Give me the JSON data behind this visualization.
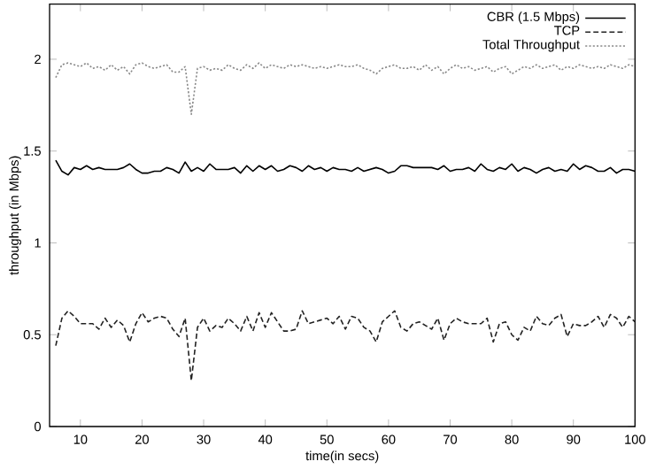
{
  "chart_data": {
    "type": "line",
    "xlabel": "time(in secs)",
    "ylabel": "throughput (in Mbps)",
    "x": [
      6,
      7,
      8,
      9,
      10,
      11,
      12,
      13,
      14,
      15,
      16,
      17,
      18,
      19,
      20,
      21,
      22,
      23,
      24,
      25,
      26,
      27,
      28,
      29,
      30,
      31,
      32,
      33,
      34,
      35,
      36,
      37,
      38,
      39,
      40,
      41,
      42,
      43,
      44,
      45,
      46,
      47,
      48,
      49,
      50,
      51,
      52,
      53,
      54,
      55,
      56,
      57,
      58,
      59,
      60,
      61,
      62,
      63,
      64,
      65,
      66,
      67,
      68,
      69,
      70,
      71,
      72,
      73,
      74,
      75,
      76,
      77,
      78,
      79,
      80,
      81,
      82,
      83,
      84,
      85,
      86,
      87,
      88,
      89,
      90,
      91,
      92,
      93,
      94,
      95,
      96,
      97,
      98,
      99,
      100
    ],
    "xlim": [
      5,
      100
    ],
    "xticks": [
      10,
      20,
      30,
      40,
      50,
      60,
      70,
      80,
      90,
      100
    ],
    "ylim": [
      0,
      2.3
    ],
    "yticks": [
      0,
      0.5,
      1,
      1.5,
      2
    ],
    "legend": "top right",
    "grid": false,
    "marker": "none",
    "series": [
      {
        "name": "CBR (1.5 Mbps)",
        "color": "#000000",
        "line_style": "solid",
        "values": [
          1.45,
          1.39,
          1.37,
          1.41,
          1.4,
          1.42,
          1.4,
          1.41,
          1.4,
          1.4,
          1.4,
          1.41,
          1.43,
          1.4,
          1.38,
          1.38,
          1.39,
          1.39,
          1.41,
          1.4,
          1.38,
          1.44,
          1.39,
          1.41,
          1.39,
          1.43,
          1.4,
          1.4,
          1.4,
          1.41,
          1.38,
          1.42,
          1.39,
          1.42,
          1.4,
          1.42,
          1.39,
          1.4,
          1.42,
          1.41,
          1.39,
          1.42,
          1.4,
          1.41,
          1.39,
          1.41,
          1.4,
          1.4,
          1.39,
          1.41,
          1.39,
          1.4,
          1.41,
          1.4,
          1.38,
          1.39,
          1.42,
          1.42,
          1.41,
          1.41,
          1.41,
          1.41,
          1.4,
          1.42,
          1.39,
          1.4,
          1.4,
          1.41,
          1.39,
          1.43,
          1.4,
          1.39,
          1.41,
          1.4,
          1.43,
          1.39,
          1.41,
          1.4,
          1.38,
          1.4,
          1.41,
          1.39,
          1.4,
          1.39,
          1.43,
          1.4,
          1.42,
          1.41,
          1.39,
          1.39,
          1.41,
          1.38,
          1.4,
          1.4,
          1.39
        ]
      },
      {
        "name": "TCP",
        "color": "#222222",
        "line_style": "dashed",
        "values": [
          0.44,
          0.59,
          0.63,
          0.6,
          0.56,
          0.56,
          0.56,
          0.53,
          0.59,
          0.54,
          0.58,
          0.55,
          0.46,
          0.56,
          0.62,
          0.57,
          0.59,
          0.6,
          0.59,
          0.53,
          0.49,
          0.59,
          0.25,
          0.54,
          0.59,
          0.52,
          0.55,
          0.54,
          0.59,
          0.56,
          0.52,
          0.6,
          0.52,
          0.62,
          0.54,
          0.62,
          0.57,
          0.52,
          0.52,
          0.53,
          0.63,
          0.56,
          0.57,
          0.58,
          0.59,
          0.56,
          0.6,
          0.53,
          0.6,
          0.59,
          0.54,
          0.52,
          0.46,
          0.57,
          0.6,
          0.63,
          0.54,
          0.52,
          0.56,
          0.57,
          0.55,
          0.53,
          0.59,
          0.47,
          0.56,
          0.59,
          0.57,
          0.56,
          0.56,
          0.56,
          0.59,
          0.46,
          0.56,
          0.57,
          0.5,
          0.47,
          0.54,
          0.52,
          0.6,
          0.56,
          0.55,
          0.59,
          0.61,
          0.49,
          0.56,
          0.55,
          0.55,
          0.57,
          0.6,
          0.54,
          0.61,
          0.59,
          0.54,
          0.6,
          0.57
        ]
      },
      {
        "name": "Total Throughput",
        "color": "#888888",
        "line_style": "dotted",
        "values": [
          1.9,
          1.97,
          1.98,
          1.97,
          1.96,
          1.98,
          1.95,
          1.96,
          1.94,
          1.97,
          1.94,
          1.96,
          1.92,
          1.97,
          1.98,
          1.96,
          1.95,
          1.96,
          1.97,
          1.93,
          1.93,
          1.96,
          1.7,
          1.95,
          1.96,
          1.94,
          1.95,
          1.94,
          1.97,
          1.95,
          1.94,
          1.97,
          1.95,
          1.98,
          1.95,
          1.97,
          1.96,
          1.95,
          1.97,
          1.96,
          1.97,
          1.96,
          1.95,
          1.96,
          1.95,
          1.96,
          1.97,
          1.96,
          1.96,
          1.97,
          1.95,
          1.94,
          1.92,
          1.95,
          1.96,
          1.97,
          1.95,
          1.95,
          1.96,
          1.94,
          1.97,
          1.94,
          1.96,
          1.92,
          1.95,
          1.97,
          1.95,
          1.96,
          1.94,
          1.95,
          1.96,
          1.93,
          1.95,
          1.96,
          1.92,
          1.94,
          1.96,
          1.95,
          1.97,
          1.95,
          1.96,
          1.97,
          1.94,
          1.96,
          1.95,
          1.97,
          1.96,
          1.95,
          1.96,
          1.95,
          1.97,
          1.96,
          1.95,
          1.97,
          1.96
        ]
      }
    ]
  }
}
